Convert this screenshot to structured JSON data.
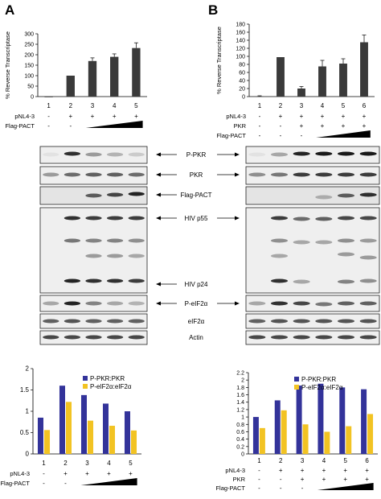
{
  "panels": {
    "a": "A",
    "b": "B"
  },
  "transcriptase": {
    "ylabel": "% Reverse Transcriptase",
    "a": {
      "yticks": [
        0,
        50,
        100,
        150,
        200,
        250,
        300
      ],
      "ymax": 300,
      "lanes": [
        "1",
        "2",
        "3",
        "4",
        "5"
      ],
      "values": [
        0,
        100,
        170,
        190,
        232
      ],
      "errors": [
        0,
        0,
        15,
        14,
        25
      ]
    },
    "b": {
      "yticks": [
        0,
        20,
        40,
        60,
        80,
        100,
        120,
        140,
        160,
        180
      ],
      "ymax": 180,
      "lanes": [
        "1",
        "2",
        "3",
        "4",
        "5",
        "6"
      ],
      "values": [
        1,
        98,
        20,
        75,
        82,
        135
      ],
      "errors": [
        1,
        0,
        5,
        15,
        12,
        18
      ]
    }
  },
  "conditions": {
    "a": [
      {
        "label": "pNL4-3",
        "marks": [
          "-",
          "+",
          "+",
          "+",
          "+"
        ]
      },
      {
        "label": "Flag-PACT",
        "marks": [
          "-",
          "-",
          "ramp"
        ]
      }
    ],
    "b": [
      {
        "label": "pNL4-3",
        "marks": [
          "-",
          "+",
          "+",
          "+",
          "+",
          "+"
        ]
      },
      {
        "label": "PKR",
        "marks": [
          "-",
          "-",
          "+",
          "+",
          "+",
          "+"
        ]
      },
      {
        "label": "Flag-PACT",
        "marks": [
          "-",
          "-",
          "-",
          "ramp"
        ]
      }
    ]
  },
  "blot_labels": [
    "P-PKR",
    "PKR",
    "Flag-PACT",
    "HIV p55",
    "HIV p24",
    "P-eIF2α",
    "eIF2α",
    "Actin"
  ],
  "chart_data": [
    {
      "type": "bar",
      "title": "",
      "xlabel": "",
      "ylabel": "",
      "categories": [
        "1",
        "2",
        "3",
        "4",
        "5"
      ],
      "ylim": [
        0,
        2
      ],
      "yticks": [
        "0",
        "0.5",
        "1",
        "1.5",
        "2"
      ],
      "legend_position": "top-right",
      "series": [
        {
          "name": "P-PKR:PKR",
          "color": "#33339a",
          "values": [
            0.85,
            1.6,
            1.38,
            1.18,
            1.0
          ]
        },
        {
          "name": "P-eIF2α:eIF2α",
          "color": "#f2c323",
          "values": [
            0.56,
            1.22,
            0.78,
            0.66,
            0.55
          ]
        }
      ]
    },
    {
      "type": "bar",
      "title": "",
      "xlabel": "",
      "ylabel": "",
      "categories": [
        "1",
        "2",
        "3",
        "4",
        "5",
        "6"
      ],
      "ylim": [
        0,
        2.2
      ],
      "yticks": [
        "0",
        "0.2",
        "0.4",
        "0.6",
        "0.8",
        "1",
        "1.2",
        "1.4",
        "1.6",
        "1.8",
        "2",
        "2.2"
      ],
      "legend_position": "top-right",
      "series": [
        {
          "name": "P-PKR:PKR",
          "color": "#33339a",
          "values": [
            1.0,
            1.45,
            1.85,
            1.9,
            1.8,
            1.75
          ]
        },
        {
          "name": "P-eIF2α:eIF2α",
          "color": "#f2c323",
          "values": [
            0.7,
            1.18,
            0.8,
            0.6,
            0.75,
            1.08
          ]
        }
      ]
    }
  ]
}
